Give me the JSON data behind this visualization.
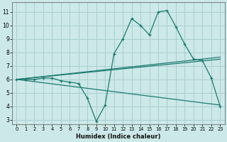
{
  "xlabel": "Humidex (Indice chaleur)",
  "bg_color": "#cce8e8",
  "grid_color": "#aacfcf",
  "line_color": "#1a7a6e",
  "xlim": [
    -0.5,
    23.5
  ],
  "ylim": [
    2.7,
    11.7
  ],
  "xticks": [
    0,
    1,
    2,
    3,
    4,
    5,
    6,
    7,
    8,
    9,
    10,
    11,
    12,
    13,
    14,
    15,
    16,
    17,
    18,
    19,
    20,
    21,
    22,
    23
  ],
  "yticks": [
    3,
    4,
    5,
    6,
    7,
    8,
    9,
    10,
    11
  ],
  "curve1_x": [
    0,
    1,
    2,
    3,
    4,
    5,
    6,
    7,
    8,
    9,
    10,
    11,
    12,
    13,
    14,
    15,
    16,
    17,
    18,
    19,
    20,
    21,
    22,
    23
  ],
  "curve1_y": [
    6.0,
    6.0,
    6.0,
    6.1,
    6.1,
    5.9,
    5.8,
    5.7,
    4.6,
    2.9,
    4.1,
    7.9,
    9.0,
    10.5,
    10.0,
    9.3,
    11.0,
    11.1,
    9.9,
    8.6,
    7.5,
    7.4,
    6.1,
    4.0
  ],
  "line2_x": [
    0,
    23
  ],
  "line2_y": [
    6.0,
    7.5
  ],
  "line3_x": [
    0,
    23
  ],
  "line3_y": [
    6.0,
    7.65
  ],
  "line4_x": [
    0,
    23
  ],
  "line4_y": [
    6.0,
    4.1
  ]
}
